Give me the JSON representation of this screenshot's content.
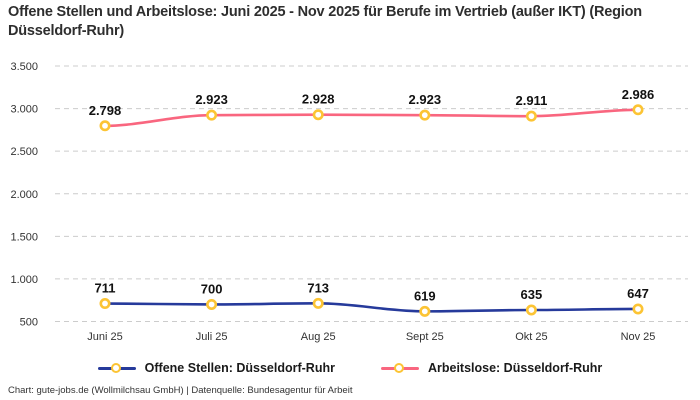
{
  "title": "Offene Stellen und Arbeitslose: Juni 2025 - Nov 2025 für Berufe im Vertrieb (außer IKT) (Region Düsseldorf-Ruhr)",
  "footer": "Chart: gute-jobs.de (Wollmilchsau GmbH) | Datenquelle: Bundesagentur für Arbeit",
  "colors": {
    "title_text": "#2e2e2e",
    "axis_text": "#333333",
    "data_label_text": "#111111",
    "grid": "#cccccc",
    "marker_ring": "#fcc434",
    "marker_fill": "#ffffff",
    "background": "#ffffff"
  },
  "legend": {
    "items": [
      {
        "label": "Offene Stellen: Düsseldorf-Ruhr",
        "color": "#263a9b"
      },
      {
        "label": "Arbeitslose: Düsseldorf-Ruhr",
        "color": "#f9667f"
      }
    ]
  },
  "chart_data": {
    "type": "line",
    "title": "Offene Stellen und Arbeitslose: Juni 2025 - Nov 2025 für Berufe im Vertrieb (außer IKT) (Region Düsseldorf-Ruhr)",
    "categories": [
      "Juni 25",
      "Juli 25",
      "Aug 25",
      "Sept 25",
      "Okt 25",
      "Nov 25"
    ],
    "series": [
      {
        "name": "Offene Stellen: Düsseldorf-Ruhr",
        "values": [
          711,
          700,
          713,
          619,
          635,
          647
        ],
        "value_labels": [
          "711",
          "700",
          "713",
          "619",
          "635",
          "647"
        ],
        "color": "#263a9b"
      },
      {
        "name": "Arbeitslose: Düsseldorf-Ruhr",
        "values": [
          2798,
          2923,
          2928,
          2923,
          2911,
          2986
        ],
        "value_labels": [
          "2.798",
          "2.923",
          "2.928",
          "2.923",
          "2.911",
          "2.986"
        ],
        "color": "#f9667f"
      }
    ],
    "xlabel": "",
    "ylabel": "",
    "ylim": [
      500,
      3500
    ],
    "yticks": [
      500,
      1000,
      1500,
      2000,
      2500,
      3000,
      3500
    ],
    "ytick_labels": [
      "500",
      "1.000",
      "1.500",
      "2.000",
      "2.500",
      "3.000",
      "3.500"
    ],
    "grid": "horizontal-dashed",
    "legend_position": "bottom",
    "marker": "circle-yellow-ring-white-fill"
  }
}
